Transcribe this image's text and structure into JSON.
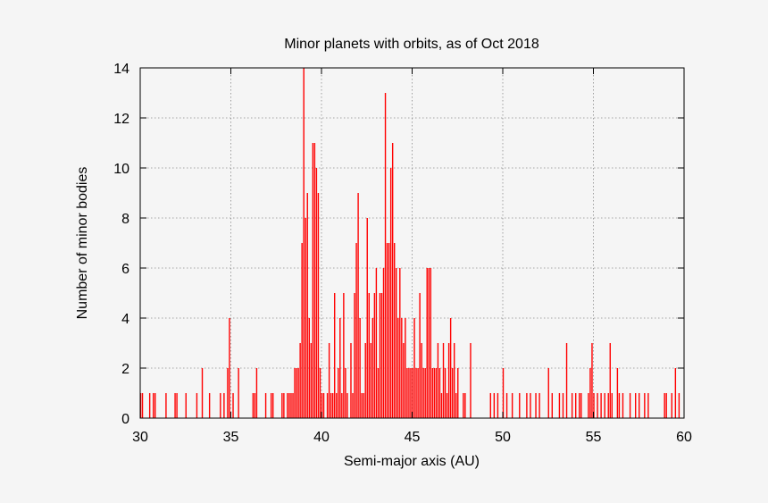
{
  "chart_data": {
    "type": "bar",
    "title": "Minor planets with orbits, as of Oct 2018",
    "xlabel": "Semi-major axis (AU)",
    "ylabel": "Number of minor bodies",
    "xlim": [
      30,
      60
    ],
    "ylim": [
      0,
      14
    ],
    "xticks": [
      30,
      35,
      40,
      45,
      50,
      55,
      60
    ],
    "yticks": [
      0,
      2,
      4,
      6,
      8,
      10,
      12,
      14
    ],
    "grid": true,
    "bar_color": "#ff0000",
    "bins": [
      [
        30.0,
        1
      ],
      [
        30.1,
        1
      ],
      [
        30.5,
        1
      ],
      [
        30.7,
        1
      ],
      [
        30.8,
        1
      ],
      [
        31.4,
        1
      ],
      [
        31.9,
        1
      ],
      [
        32.0,
        1
      ],
      [
        32.5,
        1
      ],
      [
        33.1,
        1
      ],
      [
        33.4,
        2
      ],
      [
        33.8,
        1
      ],
      [
        34.4,
        1
      ],
      [
        34.6,
        1
      ],
      [
        34.8,
        2
      ],
      [
        34.9,
        4
      ],
      [
        35.1,
        1
      ],
      [
        35.4,
        2
      ],
      [
        36.2,
        1
      ],
      [
        36.3,
        1
      ],
      [
        36.4,
        2
      ],
      [
        36.9,
        1
      ],
      [
        37.2,
        1
      ],
      [
        37.3,
        1
      ],
      [
        37.8,
        1
      ],
      [
        37.9,
        1
      ],
      [
        38.1,
        1
      ],
      [
        38.2,
        1
      ],
      [
        38.3,
        1
      ],
      [
        38.4,
        1
      ],
      [
        38.5,
        2
      ],
      [
        38.6,
        2
      ],
      [
        38.7,
        2
      ],
      [
        38.8,
        3
      ],
      [
        38.9,
        7
      ],
      [
        39.0,
        14
      ],
      [
        39.1,
        8
      ],
      [
        39.2,
        9
      ],
      [
        39.3,
        4
      ],
      [
        39.4,
        3
      ],
      [
        39.5,
        11
      ],
      [
        39.6,
        11
      ],
      [
        39.7,
        10
      ],
      [
        39.8,
        9
      ],
      [
        39.9,
        2
      ],
      [
        40.0,
        1
      ],
      [
        40.1,
        1
      ],
      [
        40.3,
        1
      ],
      [
        40.4,
        3
      ],
      [
        40.5,
        1
      ],
      [
        40.6,
        1
      ],
      [
        40.7,
        5
      ],
      [
        40.8,
        1
      ],
      [
        40.9,
        2
      ],
      [
        41.0,
        4
      ],
      [
        41.1,
        1
      ],
      [
        41.2,
        5
      ],
      [
        41.3,
        2
      ],
      [
        41.4,
        1
      ],
      [
        41.6,
        3
      ],
      [
        41.7,
        1
      ],
      [
        41.8,
        5
      ],
      [
        41.9,
        7
      ],
      [
        42.0,
        9
      ],
      [
        42.1,
        4
      ],
      [
        42.2,
        1
      ],
      [
        42.3,
        1
      ],
      [
        42.4,
        3
      ],
      [
        42.5,
        8
      ],
      [
        42.6,
        5
      ],
      [
        42.7,
        3
      ],
      [
        42.8,
        4
      ],
      [
        42.9,
        5
      ],
      [
        43.0,
        6
      ],
      [
        43.1,
        2
      ],
      [
        43.2,
        5
      ],
      [
        43.3,
        5
      ],
      [
        43.4,
        6
      ],
      [
        43.5,
        13
      ],
      [
        43.6,
        7
      ],
      [
        43.7,
        7
      ],
      [
        43.8,
        10
      ],
      [
        43.9,
        11
      ],
      [
        44.0,
        7
      ],
      [
        44.1,
        6
      ],
      [
        44.2,
        4
      ],
      [
        44.3,
        6
      ],
      [
        44.4,
        4
      ],
      [
        44.5,
        3
      ],
      [
        44.6,
        4
      ],
      [
        44.7,
        2
      ],
      [
        44.8,
        2
      ],
      [
        44.9,
        2
      ],
      [
        45.0,
        2
      ],
      [
        45.1,
        4
      ],
      [
        45.2,
        2
      ],
      [
        45.3,
        2
      ],
      [
        45.4,
        5
      ],
      [
        45.5,
        3
      ],
      [
        45.6,
        2
      ],
      [
        45.7,
        2
      ],
      [
        45.8,
        6
      ],
      [
        45.9,
        6
      ],
      [
        46.0,
        6
      ],
      [
        46.1,
        2
      ],
      [
        46.2,
        2
      ],
      [
        46.3,
        2
      ],
      [
        46.4,
        3
      ],
      [
        46.5,
        2
      ],
      [
        46.6,
        1
      ],
      [
        46.7,
        3
      ],
      [
        46.8,
        2
      ],
      [
        46.9,
        1
      ],
      [
        47.0,
        3
      ],
      [
        47.1,
        4
      ],
      [
        47.2,
        2
      ],
      [
        47.3,
        3
      ],
      [
        47.4,
        1
      ],
      [
        47.5,
        2
      ],
      [
        47.8,
        1
      ],
      [
        47.9,
        1
      ],
      [
        48.2,
        3
      ],
      [
        49.3,
        1
      ],
      [
        49.5,
        1
      ],
      [
        49.7,
        1
      ],
      [
        50.0,
        2
      ],
      [
        50.2,
        1
      ],
      [
        50.5,
        1
      ],
      [
        50.9,
        1
      ],
      [
        51.3,
        1
      ],
      [
        51.5,
        1
      ],
      [
        51.8,
        1
      ],
      [
        52.0,
        1
      ],
      [
        52.5,
        2
      ],
      [
        52.7,
        1
      ],
      [
        53.1,
        1
      ],
      [
        53.3,
        1
      ],
      [
        53.5,
        3
      ],
      [
        53.8,
        1
      ],
      [
        54.0,
        1
      ],
      [
        54.2,
        1
      ],
      [
        54.3,
        1
      ],
      [
        54.7,
        1
      ],
      [
        54.8,
        2
      ],
      [
        54.9,
        3
      ],
      [
        55.0,
        1
      ],
      [
        55.2,
        1
      ],
      [
        55.4,
        1
      ],
      [
        55.6,
        1
      ],
      [
        55.8,
        1
      ],
      [
        55.9,
        3
      ],
      [
        56.0,
        1
      ],
      [
        56.3,
        2
      ],
      [
        56.4,
        1
      ],
      [
        56.6,
        1
      ],
      [
        57.0,
        1
      ],
      [
        57.3,
        1
      ],
      [
        57.5,
        1
      ],
      [
        57.8,
        1
      ],
      [
        58.0,
        1
      ],
      [
        58.9,
        1
      ],
      [
        59.0,
        1
      ],
      [
        59.3,
        1
      ],
      [
        59.5,
        2
      ],
      [
        59.7,
        1
      ]
    ]
  }
}
